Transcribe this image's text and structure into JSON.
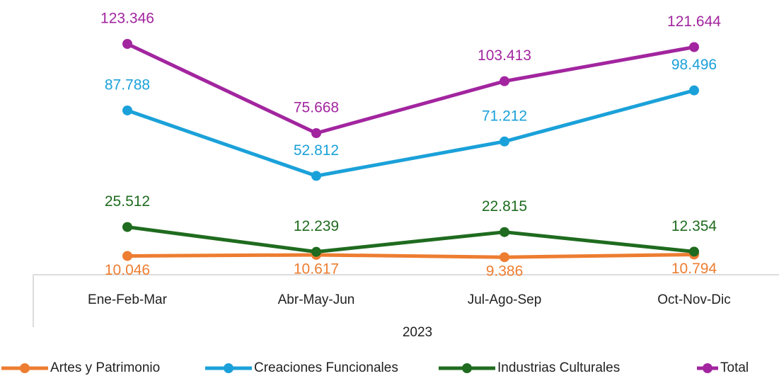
{
  "chart_data": {
    "type": "line",
    "categories": [
      "Ene-Feb-Mar",
      "Abr-May-Jun",
      "Jul-Ago-Sep",
      "Oct-Nov-Dic"
    ],
    "xlabel": "2023",
    "legend": "bottom",
    "series": [
      {
        "name": "Artes y Patrimonio",
        "color": "#ed7d31",
        "values": [
          10046,
          10617,
          9386,
          10794
        ],
        "value_labels": [
          "10.046",
          "10.617",
          "9.386",
          "10.794"
        ],
        "label_position": "below"
      },
      {
        "name": "Creaciones Funcionales",
        "color": "#1ba1d9",
        "values": [
          87788,
          52812,
          71212,
          98496
        ],
        "value_labels": [
          "87.788",
          "52.812",
          "71.212",
          "98.496"
        ],
        "label_position": "above"
      },
      {
        "name": "Industrias Culturales",
        "color": "#1f6b1f",
        "values": [
          25512,
          12239,
          22815,
          12354
        ],
        "value_labels": [
          "25.512",
          "12.239",
          "22.815",
          "12.354"
        ],
        "label_position": "above"
      },
      {
        "name": "Total",
        "color": "#a2259f",
        "values": [
          123346,
          75668,
          103413,
          121644
        ],
        "value_labels": [
          "123.346",
          "75.668",
          "103.413",
          "121.644"
        ],
        "label_position": "above"
      }
    ]
  }
}
